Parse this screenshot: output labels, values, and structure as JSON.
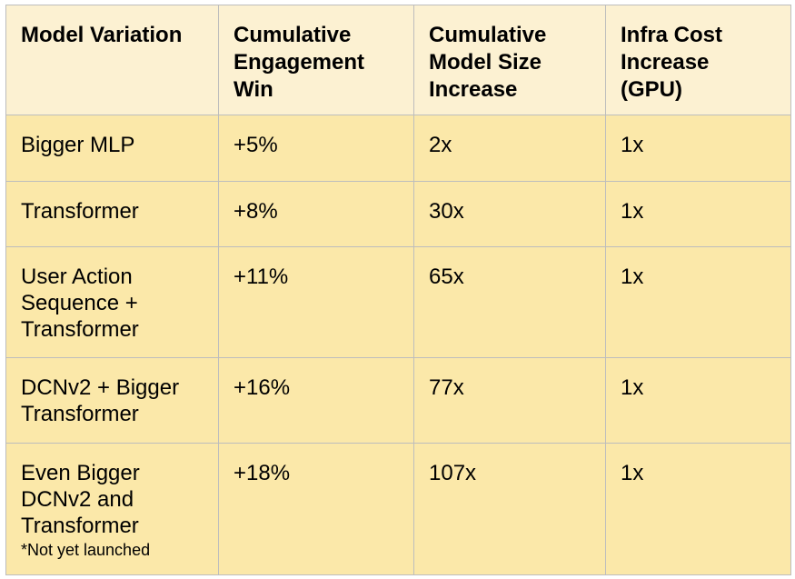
{
  "table": {
    "headers": [
      "Model Variation",
      "Cumulative Engagement Win",
      "Cumulative Model Size Increase",
      "Infra Cost Increase (GPU)"
    ],
    "rows": [
      {
        "model": "Bigger MLP",
        "engagement": "+5%",
        "size": "2x",
        "cost": "1x",
        "note": ""
      },
      {
        "model": "Transformer",
        "engagement": "+8%",
        "size": "30x",
        "cost": "1x",
        "note": ""
      },
      {
        "model": "User Action Sequence + Transformer",
        "engagement": "+11%",
        "size": "65x",
        "cost": "1x",
        "note": ""
      },
      {
        "model": "DCNv2 + Bigger Transformer",
        "engagement": "+16%",
        "size": "77x",
        "cost": "1x",
        "note": ""
      },
      {
        "model": "Even Bigger DCNv2 and Transformer",
        "engagement": "+18%",
        "size": "107x",
        "cost": "1x",
        "note": "*Not yet launched"
      }
    ]
  }
}
